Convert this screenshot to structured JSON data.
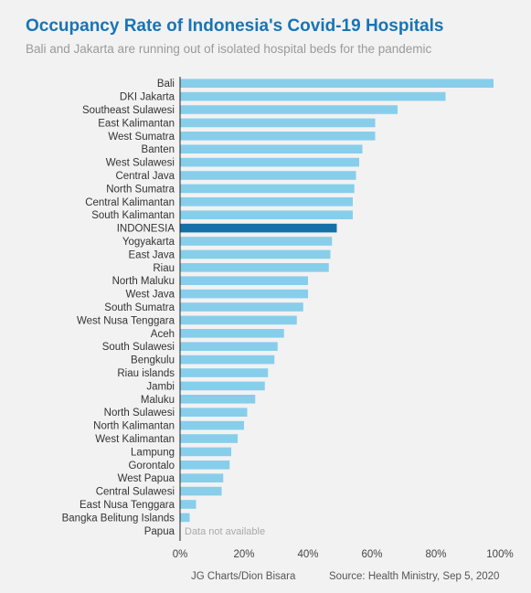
{
  "title": "Occupancy Rate of Indonesia's Covid-19 Hospitals",
  "subtitle": "Bali and Jakarta are running out of isolated hospital beds for the pandemic",
  "footer": {
    "credit": "JG Charts/Dion Bisara",
    "source": "Source: Health Ministry, Sep 5, 2020"
  },
  "colors": {
    "bar": "#87ceeb",
    "highlight": "#1570aa",
    "title": "#1874b6"
  },
  "chart_data": {
    "type": "bar",
    "orientation": "horizontal",
    "title": "Occupancy Rate of Indonesia's Covid-19 Hospitals",
    "subtitle": "Bali and Jakarta are running out of isolated hospital beds for the pandemic",
    "xlabel": "",
    "ylabel": "",
    "xlim": [
      0,
      100
    ],
    "x_ticks": [
      "0%",
      "20%",
      "40%",
      "60%",
      "80%",
      "100%"
    ],
    "grid": false,
    "highlight": "INDONESIA",
    "na_label": "Data not available",
    "categories": [
      "Bali",
      "DKI Jakarta",
      "Southeast Sulawesi",
      "East Kalimantan",
      "West Sumatra",
      "Banten",
      "West Sulawesi",
      "Central Java",
      "North Sumatra",
      "Central Kalimantan",
      "South Kalimantan",
      "INDONESIA",
      "Yogyakarta",
      "East Java",
      "Riau",
      "North Maluku",
      "West Java",
      "South Sumatra",
      "West Nusa Tenggara",
      "Aceh",
      "South Sulawesi",
      "Bengkulu",
      "Riau islands",
      "Jambi",
      "Maluku",
      "North Sulawesi",
      "North Kalimantan",
      "West Kalimantan",
      "Lampung",
      "Gorontalo",
      "West Papua",
      "Central Sulawesi",
      "East Nusa Tenggara",
      "Bangka Belitung Islands",
      "Papua"
    ],
    "values": [
      98,
      83,
      68,
      61,
      61,
      57,
      56,
      55,
      54.5,
      54,
      54,
      49,
      47.5,
      47,
      46.5,
      40,
      40,
      38.5,
      36.5,
      32.5,
      30.5,
      29.5,
      27.5,
      26.5,
      23.5,
      21,
      20,
      18,
      16,
      15.5,
      13.5,
      13,
      5,
      3,
      null
    ]
  }
}
